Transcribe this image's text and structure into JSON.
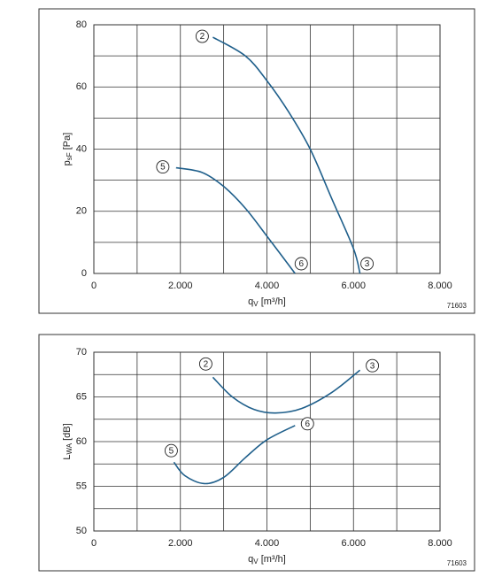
{
  "chart_data": [
    {
      "type": "line",
      "y_label": [
        "p",
        "sF",
        " [Pa]"
      ],
      "x_label": [
        "q",
        "V",
        " [m³/h]"
      ],
      "code": "71603",
      "xlim": [
        0,
        8000
      ],
      "ylim": [
        0,
        80
      ],
      "xticks": [
        0,
        {
          "value": 2000,
          "label": "2.000"
        },
        {
          "value": 4000,
          "label": "4.000"
        },
        {
          "value": 6000,
          "label": "6.000"
        },
        {
          "value": 8000,
          "label": "8.000"
        }
      ],
      "yticks": [
        0,
        20,
        40,
        60,
        80
      ],
      "x_gridlines": [
        1000,
        3000,
        5000,
        7000
      ],
      "y_gridlines": [
        10,
        30,
        50,
        70
      ],
      "series": [
        {
          "start_label": "2",
          "end_label": "3",
          "color": "#1f5f8b",
          "x": [
            2750,
            3500,
            4000,
            4500,
            5000,
            5500,
            6000,
            6150
          ],
          "values": [
            76,
            70,
            62,
            52,
            40,
            24,
            8,
            0
          ]
        },
        {
          "start_label": "5",
          "end_label": "6",
          "color": "#1f5f8b",
          "x": [
            1900,
            2500,
            3000,
            3500,
            4000,
            4650
          ],
          "values": [
            34,
            32.5,
            28,
            21,
            12,
            0
          ]
        }
      ]
    },
    {
      "type": "line",
      "y_label": [
        "L",
        "WA",
        " [dB]"
      ],
      "x_label": [
        "q",
        "V",
        " [m³/h]"
      ],
      "code": "71603",
      "xlim": [
        0,
        8000
      ],
      "ylim": [
        50,
        70
      ],
      "xticks": [
        0,
        {
          "value": 2000,
          "label": "2.000"
        },
        {
          "value": 4000,
          "label": "4.000"
        },
        {
          "value": 6000,
          "label": "6.000"
        },
        {
          "value": 8000,
          "label": "8.000"
        }
      ],
      "yticks": [
        50,
        55,
        60,
        65,
        70
      ],
      "x_gridlines": [
        1000,
        3000,
        5000,
        7000
      ],
      "y_gridlines": [
        52.5,
        57.5,
        62.5,
        67.5
      ],
      "series": [
        {
          "start_label": "2",
          "end_label": "3",
          "color": "#1f5f8b",
          "x": [
            2750,
            3200,
            3700,
            4200,
            4800,
            5500,
            6150
          ],
          "values": [
            67.2,
            65,
            63.6,
            63.2,
            63.7,
            65.5,
            68
          ]
        },
        {
          "start_label": "5",
          "end_label": "6",
          "color": "#1f5f8b",
          "x": [
            1850,
            2100,
            2550,
            3000,
            3500,
            4000,
            4650
          ],
          "values": [
            57.7,
            56.2,
            55.3,
            56,
            58.2,
            60.2,
            61.8
          ]
        }
      ]
    }
  ]
}
